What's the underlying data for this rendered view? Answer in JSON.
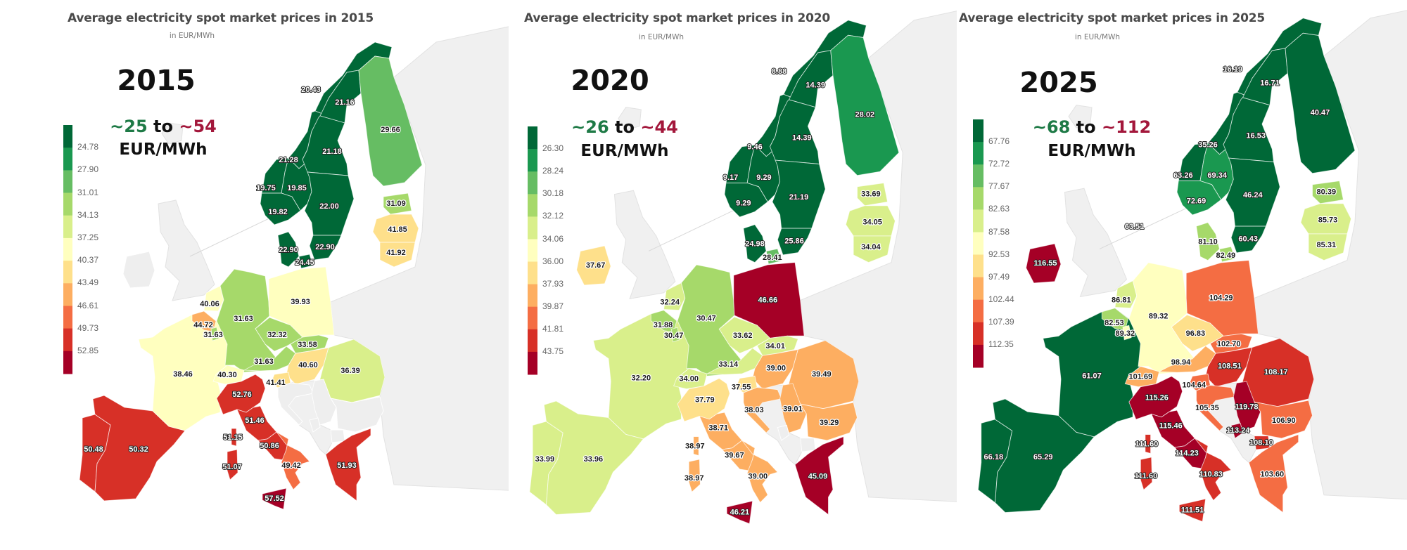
{
  "colors": {
    "scale": [
      "#006837",
      "#1a9850",
      "#66bd63",
      "#a6d96a",
      "#d9ef8b",
      "#ffffbf",
      "#fee08b",
      "#fdae61",
      "#f46d43",
      "#d73027",
      "#a50026"
    ],
    "no_data_land": "#eeeeee",
    "range_low": "#1e7a46",
    "range_high": "#a3173b"
  },
  "panels": [
    {
      "title": "Average electricity spot market prices in 2015",
      "subtitle": "in EUR/MWh",
      "year": "2015",
      "range_low": "~25",
      "range_to": "to",
      "range_high": "~54",
      "unit": "EUR/MWh",
      "legend": [
        "24.78",
        "27.90",
        "31.01",
        "34.13",
        "37.25",
        "40.37",
        "43.49",
        "46.61",
        "49.73",
        "52.85"
      ],
      "regions": {
        "NO4": "20.43",
        "SE1": "21.16",
        "SE2": "21.18",
        "NO3": "21.28",
        "NO5": "19.75",
        "NO1": "19.85",
        "NO2": "19.82",
        "SE3": "22.00",
        "DK1": "22.90",
        "SE4": "22.90",
        "DK2": "24.45",
        "FI": "29.66",
        "EE": "31.09",
        "LV": "41.85",
        "LT": "41.92",
        "NL": "40.06",
        "BE": "44.72",
        "LU": "31.63",
        "DE": "31.63",
        "PL": "39.93",
        "CZ": "32.32",
        "SK": "33.58",
        "AT": "31.63",
        "HU": "40.60",
        "RO": "36.39",
        "CH": "40.30",
        "SI": "41.41",
        "FR": "38.46",
        "IT_N": "52.76",
        "IT_CN": "51.46",
        "IT_CS": "50.86",
        "IT_S": "49.42",
        "SICILY": "57.52",
        "CORSICA": "51.15",
        "SARDINIA": "51.07",
        "GR": "51.93",
        "ES": "50.32",
        "PT": "50.48"
      },
      "extra_labels": []
    },
    {
      "title": "Average electricity spot market prices in 2020",
      "subtitle": "in EUR/MWh",
      "year": "2020",
      "range_low": "~26",
      "range_to": "to",
      "range_high": "~44",
      "unit": "EUR/MWh",
      "legend": [
        "26.30",
        "28.24",
        "30.18",
        "32.12",
        "34.06",
        "36.00",
        "37.93",
        "39.87",
        "41.81",
        "43.75"
      ],
      "regions": {
        "NO4": "8.88",
        "SE1": "14.39",
        "SE2": "14.39",
        "NO3": "9.46",
        "NO5": "9.17",
        "NO1": "9.29",
        "NO2": "9.29",
        "SE3": "21.19",
        "SE4": "25.86",
        "DK1": "24.98",
        "DK2": "28.41",
        "FI": "28.02",
        "EE": "33.69",
        "LV": "34.05",
        "LT": "34.04",
        "PL": "46.66",
        "IE": "37.67",
        "NL": "32.24",
        "BE": "31.88",
        "LU": "30.47",
        "DE": "30.47",
        "FR": "32.20",
        "CZ": "33.62",
        "SK": "34.01",
        "AT": "33.14",
        "CH": "34.00",
        "SI": "37.55",
        "IT_N": "37.79",
        "HR": "38.03",
        "HU": "39.00",
        "RO": "39.49",
        "RS": "39.01",
        "BG": "39.29",
        "IT_CN": "38.71",
        "CORSICA": "38.97",
        "SARDINIA": "38.97",
        "IT_CS": "39.67",
        "IT_S": "39.00",
        "SICILY": "46.21",
        "GR": "45.09",
        "PT": "33.99",
        "ES": "33.96"
      },
      "extra_labels": []
    },
    {
      "title": "Average electricity spot market prices in 2025",
      "subtitle": "in EUR/MWh",
      "year": "2025",
      "range_low": "~68",
      "range_to": "to",
      "range_high": "~112",
      "unit": "EUR/MWh",
      "legend": [
        "67.76",
        "72.72",
        "77.67",
        "82.63",
        "87.58",
        "92.53",
        "97.49",
        "102.44",
        "107.39",
        "112.35"
      ],
      "regions": {
        "NO4": "16.19",
        "SE1": "16.71",
        "FI": "40.47",
        "SE2": "16.53",
        "NO3": "35.26",
        "NO5": "63.26",
        "NO1": "69.34",
        "NO2": "72.69",
        "SE3": "46.24",
        "SE4": "60.43",
        "DK1": "81.10",
        "DK2": "82.49",
        "EE": "80.39",
        "LV": "85.73",
        "LT": "85.31",
        "IE": "116.55",
        "PL": "104.29",
        "NL": "86.81",
        "DE": "89.32",
        "BE": "82.53",
        "LU": "89.32",
        "CZ": "96.83",
        "SK": "102.70",
        "AT": "98.94",
        "HU": "108.51",
        "RO": "108.17",
        "CH": "101.69",
        "FR": "61.07",
        "SI": "104.64",
        "IT_N": "115.26",
        "HR": "105.35",
        "RS": "119.78",
        "BG": "106.90",
        "ME": "113.24",
        "MK": "108.10",
        "IT_CN": "115.46",
        "CORSICA": "111.60",
        "SARDINIA": "111.60",
        "IT_CS": "114.23",
        "IT_S": "110.83",
        "SICILY": "111.51",
        "GR": "103.60",
        "PT": "66.18",
        "ES": "65.29"
      },
      "extra_labels": [
        "63.51"
      ]
    }
  ]
}
